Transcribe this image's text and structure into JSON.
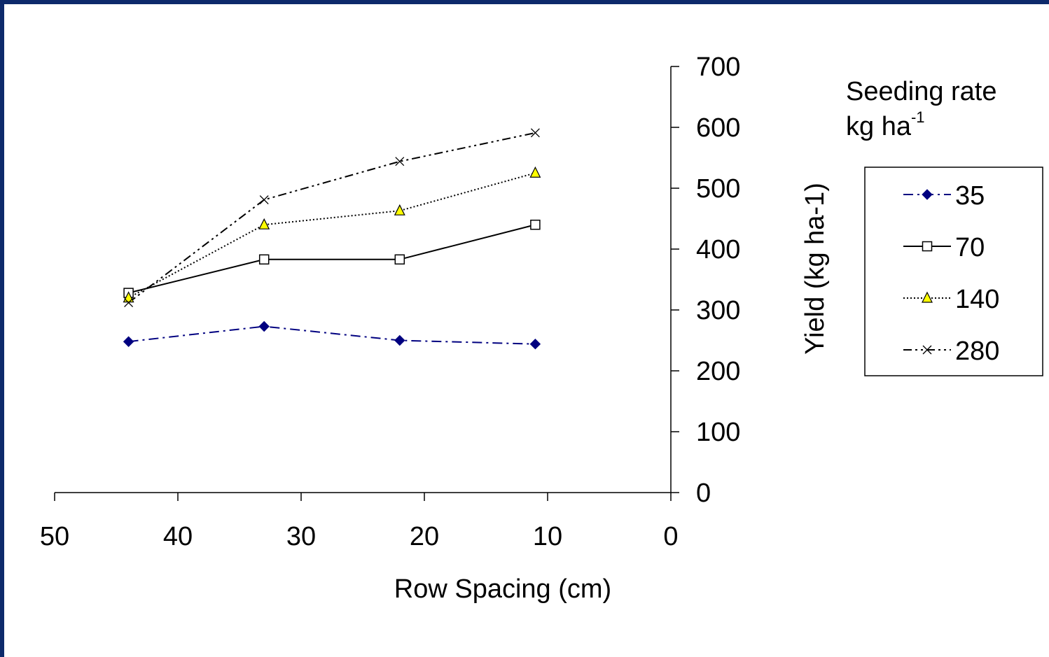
{
  "chart_data": {
    "type": "line",
    "xlabel": "Row Spacing (cm)",
    "ylabel": "Yield (kg ha-1)",
    "xlim": [
      50,
      0
    ],
    "ylim": [
      0,
      700
    ],
    "x_reversed": true,
    "y_axis_position": "right",
    "xticks": [
      50,
      40,
      30,
      20,
      10,
      0
    ],
    "yticks": [
      0,
      100,
      200,
      300,
      400,
      500,
      600,
      700
    ],
    "grid": false,
    "legend": {
      "title_line1": "Seeding rate",
      "title_line2_base": "kg ha",
      "title_line2_sup": "-1",
      "placement": "right",
      "entries": [
        "35",
        "70",
        "140",
        "280"
      ]
    },
    "x": [
      44,
      33,
      22,
      11
    ],
    "series": [
      {
        "name": "35",
        "values": [
          248,
          273,
          250,
          244
        ],
        "color": "#000080",
        "marker": "diamond",
        "dash": "dashdot"
      },
      {
        "name": "70",
        "values": [
          328,
          383,
          383,
          440
        ],
        "color": "#000000",
        "marker": "square",
        "dash": "solid"
      },
      {
        "name": "140",
        "values": [
          320,
          440,
          463,
          525
        ],
        "color": "#000000",
        "marker": "triangle",
        "dash": "dotted"
      },
      {
        "name": "280",
        "values": [
          312,
          481,
          544,
          591
        ],
        "color": "#000000",
        "marker": "x",
        "dash": "dashdotdot"
      }
    ]
  }
}
